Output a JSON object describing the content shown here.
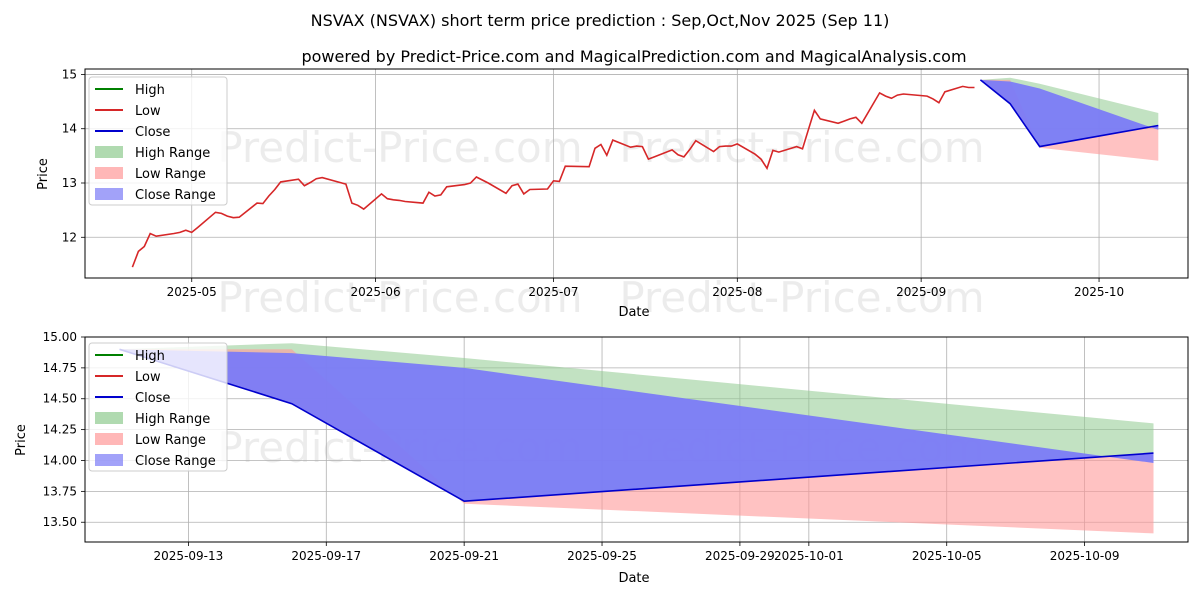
{
  "title": "NSVAX (NSVAX) short term price prediction : Sep,Oct,Nov 2025 (Sep 11)",
  "subtitle": "powered by Predict-Price.com and MagicalPrediction.com and MagicalAnalysis.com",
  "watermark": "Predict-Price.com",
  "colors": {
    "high": "#008000",
    "low": "#d62728",
    "close": "#0000cd",
    "high_range": "#8fca8f",
    "low_range": "#ff9999",
    "close_range": "#7b7bf7",
    "grid": "#b0b0b0"
  },
  "chart_data": [
    {
      "type": "line",
      "xlabel": "Date",
      "ylabel": "Price",
      "xlim": [
        "2025-04-13",
        "2025-10-16"
      ],
      "ylim": [
        11.25,
        15.1
      ],
      "xticks": [
        "2025-05-01",
        "2025-06-01",
        "2025-07-01",
        "2025-08-01",
        "2025-09-01",
        "2025-10-01"
      ],
      "xtick_labels": [
        "2025-05",
        "2025-06",
        "2025-07",
        "2025-08",
        "2025-09",
        "2025-10"
      ],
      "yticks": [
        12,
        13,
        14,
        15
      ],
      "ytick_labels": [
        "12",
        "13",
        "14",
        "15"
      ],
      "grid": true,
      "legend": {
        "position": "top-left",
        "entries": [
          {
            "label": "High",
            "kind": "line",
            "color_key": "high"
          },
          {
            "label": "Low",
            "kind": "line",
            "color_key": "low"
          },
          {
            "label": "Close",
            "kind": "line",
            "color_key": "close"
          },
          {
            "label": "High Range",
            "kind": "patch",
            "color_key": "high_range"
          },
          {
            "label": "Low Range",
            "kind": "patch",
            "color_key": "low_range"
          },
          {
            "label": "Close Range",
            "kind": "patch",
            "color_key": "close_range"
          }
        ]
      },
      "history": {
        "name": "Low",
        "x": [
          "2025-04-21",
          "2025-04-22",
          "2025-04-23",
          "2025-04-24",
          "2025-04-25",
          "2025-04-28",
          "2025-04-29",
          "2025-04-30",
          "2025-05-01",
          "2025-05-02",
          "2025-05-05",
          "2025-05-06",
          "2025-05-07",
          "2025-05-08",
          "2025-05-09",
          "2025-05-12",
          "2025-05-13",
          "2025-05-14",
          "2025-05-15",
          "2025-05-16",
          "2025-05-19",
          "2025-05-20",
          "2025-05-21",
          "2025-05-22",
          "2025-05-23",
          "2025-05-27",
          "2025-05-28",
          "2025-05-29",
          "2025-05-30",
          "2025-06-02",
          "2025-06-03",
          "2025-06-04",
          "2025-06-05",
          "2025-06-06",
          "2025-06-09",
          "2025-06-10",
          "2025-06-11",
          "2025-06-12",
          "2025-06-13",
          "2025-06-16",
          "2025-06-17",
          "2025-06-18",
          "2025-06-20",
          "2025-06-23",
          "2025-06-24",
          "2025-06-25",
          "2025-06-26",
          "2025-06-27",
          "2025-06-30",
          "2025-07-01",
          "2025-07-02",
          "2025-07-03",
          "2025-07-07",
          "2025-07-08",
          "2025-07-09",
          "2025-07-10",
          "2025-07-11",
          "2025-07-14",
          "2025-07-15",
          "2025-07-16",
          "2025-07-17",
          "2025-07-18",
          "2025-07-21",
          "2025-07-22",
          "2025-07-23",
          "2025-07-24",
          "2025-07-25",
          "2025-07-28",
          "2025-07-29",
          "2025-07-30",
          "2025-07-31",
          "2025-08-01",
          "2025-08-04",
          "2025-08-05",
          "2025-08-06",
          "2025-08-07",
          "2025-08-08",
          "2025-08-11",
          "2025-08-12",
          "2025-08-13",
          "2025-08-14",
          "2025-08-15",
          "2025-08-18",
          "2025-08-19",
          "2025-08-20",
          "2025-08-21",
          "2025-08-22",
          "2025-08-25",
          "2025-08-26",
          "2025-08-27",
          "2025-08-28",
          "2025-08-29",
          "2025-09-02",
          "2025-09-03",
          "2025-09-04",
          "2025-09-05",
          "2025-09-08",
          "2025-09-09",
          "2025-09-10"
        ],
        "y": [
          11.45,
          11.74,
          11.83,
          12.07,
          12.02,
          12.07,
          12.09,
          12.13,
          12.09,
          12.18,
          12.46,
          12.44,
          12.39,
          12.36,
          12.37,
          12.63,
          12.62,
          12.76,
          12.88,
          13.02,
          13.07,
          12.95,
          13.01,
          13.08,
          13.1,
          12.98,
          12.63,
          12.59,
          12.52,
          12.8,
          12.71,
          12.69,
          12.68,
          12.66,
          12.63,
          12.83,
          12.76,
          12.78,
          12.93,
          12.97,
          13.0,
          13.11,
          13.0,
          12.81,
          12.95,
          12.98,
          12.8,
          12.88,
          12.89,
          13.04,
          13.03,
          13.31,
          13.3,
          13.64,
          13.71,
          13.51,
          13.79,
          13.66,
          13.68,
          13.67,
          13.44,
          13.48,
          13.61,
          13.52,
          13.48,
          13.62,
          13.78,
          13.58,
          13.67,
          13.68,
          13.68,
          13.72,
          13.53,
          13.44,
          13.27,
          13.6,
          13.57,
          13.67,
          13.63,
          13.99,
          14.34,
          14.18,
          14.1,
          14.14,
          14.18,
          14.21,
          14.1,
          14.66,
          14.6,
          14.56,
          14.62,
          14.64,
          14.6,
          14.55,
          14.48,
          14.68,
          14.78,
          14.76,
          14.76
        ]
      },
      "forecast": {
        "x": [
          "2025-09-11",
          "2025-09-16",
          "2025-09-21",
          "2025-10-11"
        ],
        "close": [
          14.9,
          14.46,
          13.67,
          14.06
        ],
        "high_range": [
          14.9,
          14.94,
          14.83,
          14.29
        ],
        "low_range": [
          14.9,
          14.9,
          13.65,
          13.41
        ],
        "close_range_upper": [
          14.9,
          14.87,
          14.74,
          13.98
        ]
      }
    },
    {
      "type": "line",
      "xlabel": "Date",
      "ylabel": "Price",
      "xlim": [
        "2025-09-10",
        "2025-10-12"
      ],
      "ylim": [
        13.34,
        15.0
      ],
      "xticks": [
        "2025-09-13",
        "2025-09-17",
        "2025-09-21",
        "2025-09-25",
        "2025-09-29",
        "2025-10-01",
        "2025-10-05",
        "2025-10-09"
      ],
      "xtick_labels": [
        "2025-09-13",
        "2025-09-17",
        "2025-09-21",
        "2025-09-25",
        "2025-09-29",
        "2025-10-01",
        "2025-10-05",
        "2025-10-09"
      ],
      "yticks": [
        13.5,
        13.75,
        14.0,
        14.25,
        14.5,
        14.75,
        15.0
      ],
      "ytick_labels": [
        "13.50",
        "13.75",
        "14.00",
        "14.25",
        "14.50",
        "14.75",
        "15.00"
      ],
      "grid": true,
      "legend": {
        "position": "top-left",
        "entries": [
          {
            "label": "High",
            "kind": "line",
            "color_key": "high"
          },
          {
            "label": "Low",
            "kind": "line",
            "color_key": "low"
          },
          {
            "label": "Close",
            "kind": "line",
            "color_key": "close"
          },
          {
            "label": "High Range",
            "kind": "patch",
            "color_key": "high_range"
          },
          {
            "label": "Low Range",
            "kind": "patch",
            "color_key": "low_range"
          },
          {
            "label": "Close Range",
            "kind": "patch",
            "color_key": "close_range"
          }
        ]
      },
      "forecast": {
        "x": [
          "2025-09-11",
          "2025-09-16",
          "2025-09-21",
          "2025-10-11"
        ],
        "close": [
          14.9,
          14.46,
          13.67,
          14.06
        ],
        "high_range": [
          14.9,
          14.95,
          14.83,
          14.3
        ],
        "low_range": [
          14.9,
          14.9,
          13.65,
          13.41
        ],
        "close_range_upper": [
          14.9,
          14.87,
          14.75,
          13.98
        ]
      }
    }
  ]
}
